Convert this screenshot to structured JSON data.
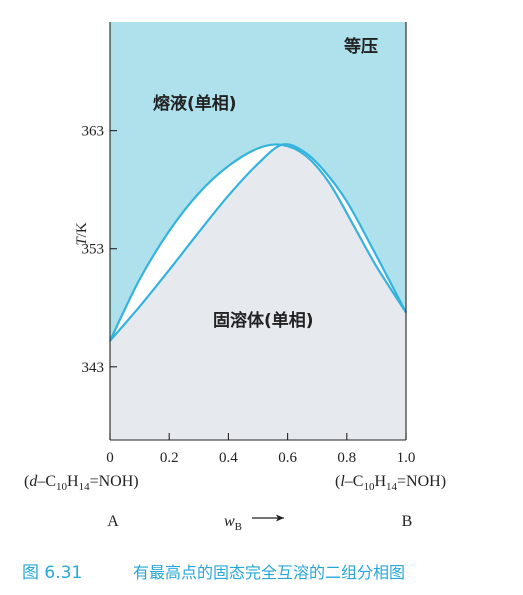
{
  "chart_data": {
    "type": "phase-diagram",
    "region_labels": {
      "top_right": "等压",
      "liquid": "熔液(单相)",
      "solid": "固溶体(单相)"
    },
    "y_axis": {
      "label_italic": "T",
      "label_rest": "/K",
      "ticks": [
        {
          "value": 343,
          "label": "343"
        },
        {
          "value": 353,
          "label": "353"
        },
        {
          "value": 363,
          "label": "363"
        }
      ],
      "ylim": [
        336.8,
        372.2
      ]
    },
    "x_axis": {
      "ticks": [
        {
          "value": 0.0,
          "label": "0"
        },
        {
          "value": 0.2,
          "label": "0.2"
        },
        {
          "value": 0.4,
          "label": "0.4"
        },
        {
          "value": 0.6,
          "label": "0.6"
        },
        {
          "value": 0.8,
          "label": "0.8"
        },
        {
          "value": 1.0,
          "label": "1.0"
        }
      ],
      "xlim": [
        0,
        1
      ],
      "label": "w",
      "label_sub": "B",
      "component_left": {
        "prefix": "(",
        "italic": "d",
        "formula_lead": "–C",
        "sub1": "10",
        "mid": "H",
        "sub2": "14",
        "tail": "=NOH)"
      },
      "component_right": {
        "prefix": "(",
        "italic": "l",
        "formula_lead": "–C",
        "sub1": "10",
        "mid": "H",
        "sub2": "14",
        "tail": "=NOH)"
      },
      "end_left": "A",
      "end_right": "B"
    },
    "series": [
      {
        "name": "",
        "points": [
          [
            0,
            345.2
          ],
          [
            0.1,
            350.4
          ],
          [
            0.2,
            354.5
          ],
          [
            0.3,
            357.7
          ],
          [
            0.4,
            360.0
          ],
          [
            0.5,
            361.5
          ],
          [
            0.58,
            361.8
          ],
          [
            0.66,
            360.9
          ],
          [
            0.74,
            358.6
          ],
          [
            0.82,
            355.1
          ],
          [
            0.9,
            351.5
          ],
          [
            1.0,
            347.6
          ]
        ]
      },
      {
        "name": "",
        "points": [
          [
            0,
            345.2
          ],
          [
            0.1,
            348.1
          ],
          [
            0.2,
            351.2
          ],
          [
            0.3,
            354.4
          ],
          [
            0.4,
            357.5
          ],
          [
            0.5,
            360.2
          ],
          [
            0.58,
            361.8
          ],
          [
            0.65,
            361.3
          ],
          [
            0.72,
            359.7
          ],
          [
            0.8,
            357.0
          ],
          [
            0.9,
            352.4
          ],
          [
            1.0,
            347.6
          ]
        ]
      }
    ],
    "colors": {
      "liquid_region": "#aee1ec",
      "solid_region": "#e6e9ee",
      "two_phase_region": "#ffffff",
      "curve": "#35b3dc",
      "caption": "#27a7d8"
    }
  },
  "caption": {
    "figure_number": "图 6.31",
    "text": "有最高点的固态完全互溶的二组分相图"
  }
}
